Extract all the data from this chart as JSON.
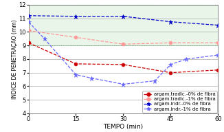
{
  "xlabel": "TEMPO (min)",
  "ylabel": "INDICE DE PENETRAÇAO (mm)",
  "xlim": [
    0,
    60
  ],
  "ylim": [
    4,
    12
  ],
  "yticks": [
    4,
    5,
    6,
    7,
    8,
    9,
    10,
    11,
    12
  ],
  "xticks": [
    0,
    15,
    30,
    45,
    60
  ],
  "shaded_ymin": 9,
  "shaded_ymax": 12,
  "series": {
    "trad_0": {
      "x": [
        0,
        15,
        30,
        45,
        60
      ],
      "y": [
        9.2,
        7.65,
        7.6,
        7.0,
        7.2
      ],
      "color": "#cc0000",
      "linestyle": "--",
      "marker": "o",
      "label": "argam.tradic.-0% de fibra",
      "linewidth": 0.9,
      "markersize": 3.5,
      "markerfacecolor": "#cc0000"
    },
    "trad_1": {
      "x": [
        0,
        15,
        30,
        45,
        60
      ],
      "y": [
        10.1,
        9.6,
        9.1,
        9.2,
        9.2
      ],
      "color": "#ff9999",
      "linestyle": "--",
      "marker": "o",
      "label": "argam.tradic.-1% de fibra",
      "linewidth": 0.9,
      "markersize": 3.5,
      "markerfacecolor": "#ff9999"
    },
    "indr_0": {
      "x": [
        0,
        15,
        30,
        45,
        60
      ],
      "y": [
        11.2,
        11.15,
        11.15,
        10.75,
        10.5
      ],
      "color": "#0000cc",
      "linestyle": "--",
      "marker": "*",
      "label": "argam.indr.-0% de fibra",
      "linewidth": 0.9,
      "markersize": 5,
      "markerfacecolor": "#0000cc"
    },
    "indr_1": {
      "x": [
        0,
        5,
        15,
        20,
        30,
        40,
        45,
        50,
        60
      ],
      "y": [
        10.75,
        9.5,
        6.85,
        6.6,
        6.15,
        6.4,
        7.6,
        8.0,
        8.3
      ],
      "color": "#6666ff",
      "linestyle": "--",
      "marker": "*",
      "label": "argam.indr.-1% de fibra",
      "linewidth": 0.9,
      "markersize": 5,
      "markerfacecolor": "#6666ff"
    }
  },
  "background_color": "#ffffff",
  "shaded_color": "#e8f5e8",
  "grid_color": "#aaaaaa",
  "grid_dotted_color": "#55aa55",
  "ylabel_fontsize": 5.5,
  "xlabel_fontsize": 6.5,
  "tick_fontsize": 6,
  "legend_fontsize": 5
}
